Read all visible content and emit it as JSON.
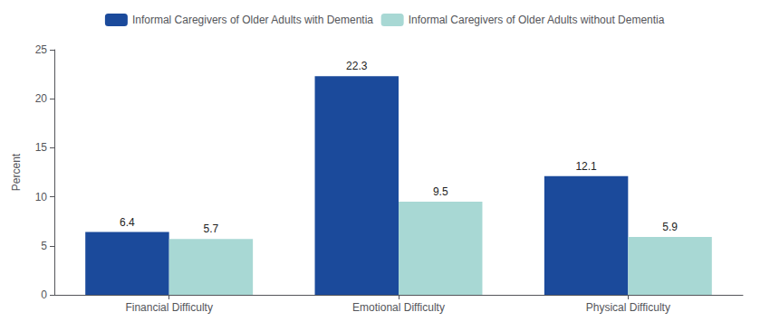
{
  "chart_data": {
    "type": "bar",
    "categories": [
      "Financial Difficulty",
      "Emotional Difficulty",
      "Physical Difficulty"
    ],
    "series": [
      {
        "name": "Informal Caregivers of Older Adults with Dementia",
        "color": "#1b4a9b",
        "values": [
          6.4,
          22.3,
          12.1
        ]
      },
      {
        "name": "Informal Caregivers of Older Adults without Dementia",
        "color": "#a8d8d4",
        "values": [
          5.7,
          9.5,
          5.9
        ]
      }
    ],
    "ylabel": "Percent",
    "ylim": [
      0,
      25
    ],
    "yticks": [
      0,
      5,
      10,
      15,
      20,
      25
    ],
    "grid": false,
    "legend": "top",
    "data_labels": true
  }
}
